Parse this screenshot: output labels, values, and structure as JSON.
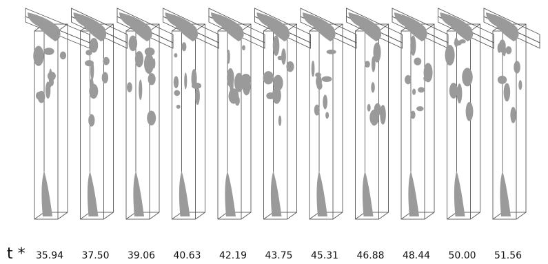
{
  "label": "t *",
  "frames": [
    {
      "time": "35.94"
    },
    {
      "time": "37.50"
    },
    {
      "time": "39.06"
    },
    {
      "time": "40.63"
    },
    {
      "time": "42.19"
    },
    {
      "time": "43.75"
    },
    {
      "time": "45.31"
    },
    {
      "time": "46.88"
    },
    {
      "time": "48.44"
    },
    {
      "time": "50.00"
    },
    {
      "time": "51.56"
    }
  ]
}
